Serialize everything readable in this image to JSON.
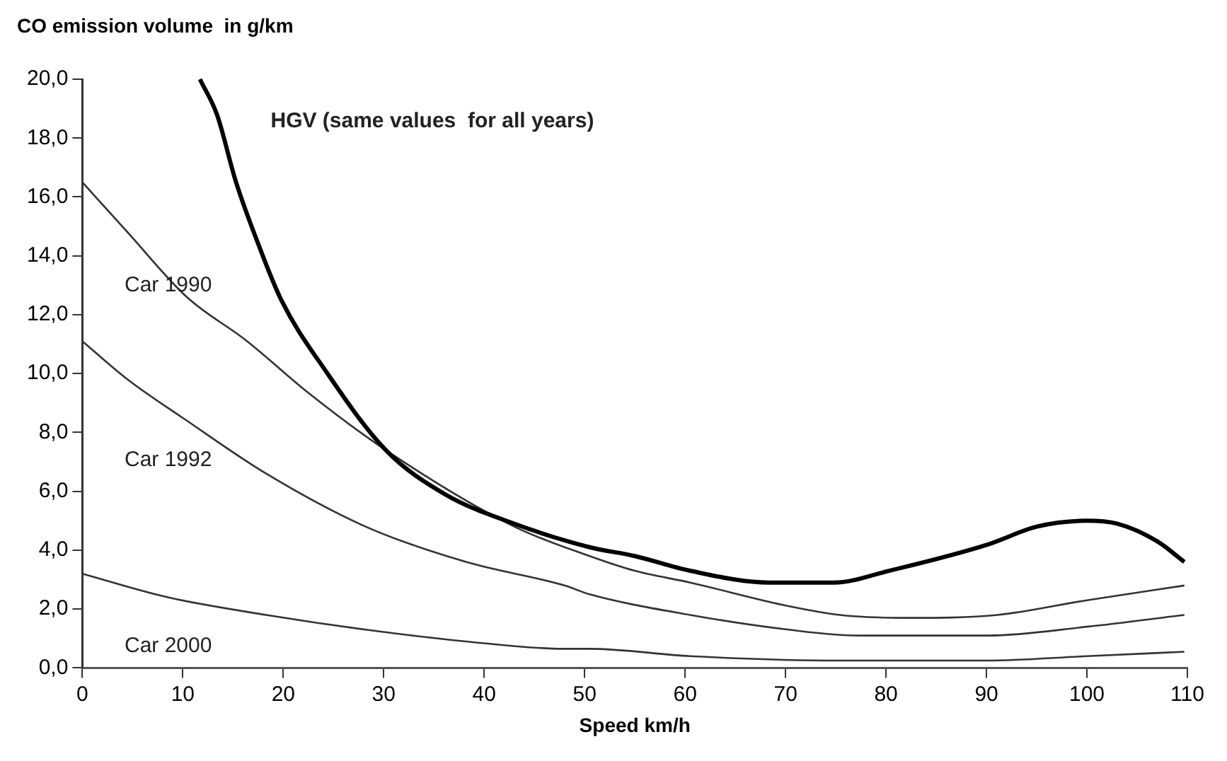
{
  "chart_data": {
    "type": "line",
    "ylabel": "CO emission volume  in g/km",
    "xlabel": "Speed km/h",
    "xlim": [
      0,
      110
    ],
    "xticks": [
      0,
      10,
      20,
      30,
      40,
      50,
      60,
      70,
      80,
      90,
      100,
      110
    ],
    "ylim": [
      0,
      20
    ],
    "yticks": [
      {
        "value": 0,
        "label": "0,0"
      },
      {
        "value": 2,
        "label": "2,0"
      },
      {
        "value": 4,
        "label": "4,0"
      },
      {
        "value": 6,
        "label": "6,0"
      },
      {
        "value": 8,
        "label": "8,0"
      },
      {
        "value": 10,
        "label": "10,0"
      },
      {
        "value": 12,
        "label": "12,0"
      },
      {
        "value": 14,
        "label": "14,0"
      },
      {
        "value": 16,
        "label": "16,0"
      },
      {
        "value": 18,
        "label": "18,0"
      },
      {
        "value": 20,
        "label": "20,0"
      }
    ],
    "grid": false,
    "legend": false,
    "marker": "none",
    "line_style": "solid",
    "series": [
      {
        "name": "HGV (same values  for all years)",
        "color": "#000000",
        "x": [
          11.7,
          13.4,
          15.3,
          17.4,
          19.8,
          24.2,
          30.2,
          36.1,
          43,
          50.5,
          55,
          60.5,
          68.4,
          74.8,
          80.3,
          90.2,
          95,
          100,
          103,
          107,
          109.7
        ],
        "values": [
          20,
          18.8,
          16.5,
          14.5,
          12.5,
          10.1,
          7.4,
          5.9,
          4.9,
          4.1,
          3.8,
          3.3,
          2.9,
          2.9,
          3.3,
          4.2,
          4.8,
          5.0,
          4.9,
          4.3,
          3.6
        ]
      },
      {
        "name": "Car 1990",
        "color": "#333333",
        "x": [
          0,
          4.5,
          10.4,
          16.4,
          22.3,
          30.2,
          43,
          50.5,
          55,
          60.5,
          70.3,
          75.4,
          82.2,
          91.1,
          100,
          109.7
        ],
        "values": [
          16.5,
          14.8,
          12.6,
          11.1,
          9.4,
          7.4,
          4.8,
          3.8,
          3.3,
          2.9,
          2.1,
          1.8,
          1.7,
          1.8,
          2.3,
          2.8
        ]
      },
      {
        "name": "Car 1992",
        "color": "#333333",
        "x": [
          0,
          4.5,
          10.4,
          18.3,
          28.2,
          38.2,
          48,
          50.5,
          60.5,
          70.3,
          77.3,
          90.2,
          100,
          109.7
        ],
        "values": [
          11.1,
          9.8,
          8.4,
          6.6,
          4.8,
          3.6,
          2.8,
          2.5,
          1.8,
          1.3,
          1.1,
          1.1,
          1.4,
          1.8
        ]
      },
      {
        "name": "Car 2000",
        "color": "#333333",
        "x": [
          0,
          8.5,
          18.3,
          28.2,
          38.2,
          48,
          50.5,
          60.5,
          75.4,
          90,
          100,
          109.7
        ],
        "values": [
          3.2,
          2.4,
          1.8,
          1.3,
          0.9,
          0.65,
          0.65,
          0.4,
          0.25,
          0.25,
          0.4,
          0.55
        ]
      }
    ]
  }
}
